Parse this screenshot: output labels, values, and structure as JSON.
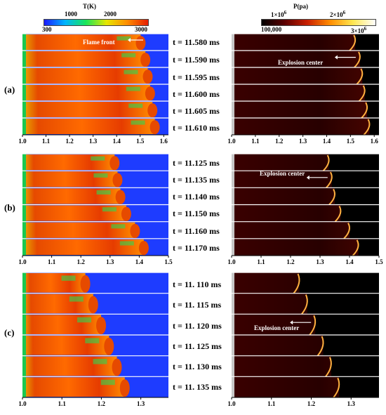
{
  "temperature_colorbar": {
    "title": "T(K)",
    "ticks_top": [
      "1000",
      "2000"
    ],
    "ticks_bottom": [
      "300",
      "3000"
    ],
    "colors": [
      "#1a1aff",
      "#00b4ff",
      "#19e65a",
      "#e6e600",
      "#ff8c00",
      "#e61e00"
    ]
  },
  "pressure_colorbar": {
    "title": "P(pa)",
    "ticks_top": [
      "1×10",
      "2×10"
    ],
    "ticks_top_exp": [
      "6",
      "6"
    ],
    "tick_bottom_left": "100,000",
    "tick_bottom_right": "3×10",
    "tick_bottom_right_exp": "6",
    "colors": [
      "#000000",
      "#5a0000",
      "#c81e00",
      "#ff8c00",
      "#ffe650",
      "#ffffff"
    ]
  },
  "panels": [
    {
      "label": "(a)",
      "times": [
        "t = 11.580 ms",
        "t = 11.590 ms",
        "t = 11.595 ms",
        "t = 11.600 ms",
        "t = 11.605 ms",
        "t = 11.610 ms"
      ],
      "x_ticks": [
        "1.0",
        "1.1",
        "1.2",
        "1.3",
        "1.4",
        "1.5",
        "1.6"
      ],
      "x_range": [
        1.0,
        1.62
      ],
      "front_positions": [
        1.52,
        1.54,
        1.55,
        1.56,
        1.57,
        1.58
      ],
      "left_annotation": "Flame front",
      "right_annotation": "Explosion center",
      "right_annotation_row": 1
    },
    {
      "label": "(b)",
      "times": [
        "t = 11.125 ms",
        "t = 11.135 ms",
        "t = 11.140 ms",
        "t = 11.150 ms",
        "t = 11.160 ms",
        "t = 11.170 ms"
      ],
      "x_ticks": [
        "1.0",
        "1.1",
        "1.2",
        "1.3",
        "1.4",
        "1.5"
      ],
      "x_range": [
        1.0,
        1.5
      ],
      "front_positions": [
        1.33,
        1.34,
        1.35,
        1.37,
        1.4,
        1.43
      ],
      "left_annotation": "",
      "right_annotation": "Explosion center",
      "right_annotation_row": 1
    },
    {
      "label": "(c)",
      "times": [
        "t = 11. 110 ms",
        "t = 11. 115 ms",
        "t = 11. 120 ms",
        "t = 11. 125 ms",
        "t = 11. 130 ms",
        "t = 11. 135 ms"
      ],
      "x_ticks": [
        "1.0",
        "1.1",
        "1.2",
        "1.3"
      ],
      "x_range": [
        1.0,
        1.37
      ],
      "front_positions": [
        1.17,
        1.19,
        1.21,
        1.23,
        1.25,
        1.27
      ],
      "left_annotation": "",
      "right_annotation": "Explosion center",
      "right_annotation_row": 2
    }
  ]
}
